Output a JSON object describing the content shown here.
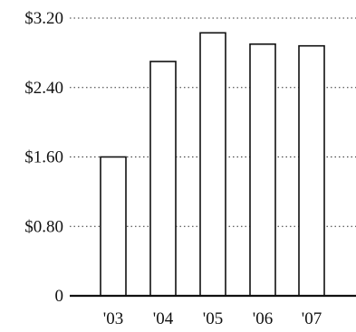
{
  "chart_data": {
    "type": "bar",
    "categories": [
      "'03",
      "'04",
      "'05",
      "'06",
      "'07"
    ],
    "values": [
      1.6,
      2.7,
      3.03,
      2.9,
      2.88
    ],
    "yticks": [
      {
        "value": 0,
        "label": "0"
      },
      {
        "value": 0.8,
        "label": "$0.80"
      },
      {
        "value": 1.6,
        "label": "$1.60"
      },
      {
        "value": 2.4,
        "label": "$2.40"
      },
      {
        "value": 3.2,
        "label": "$3.20"
      }
    ],
    "ylim": [
      0,
      3.2
    ],
    "grid": true,
    "legend": "none",
    "colors": {
      "bar_fill": "#ffffff",
      "bar_stroke": "#111111",
      "axis": "#111111",
      "grid": "#333333"
    }
  }
}
